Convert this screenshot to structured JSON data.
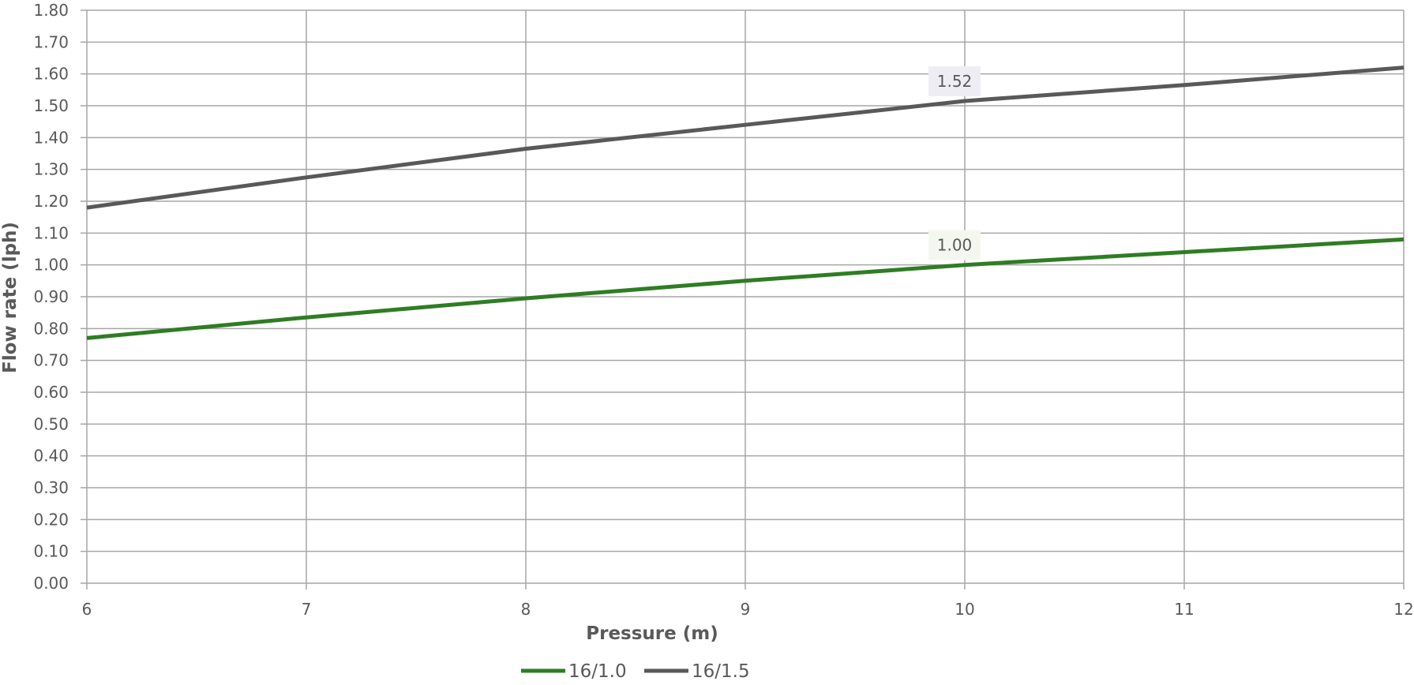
{
  "chart_data": {
    "type": "line",
    "title": "",
    "xlabel": "Pressure (m)",
    "ylabel": "Flow rate (lph)",
    "xlim": [
      6,
      12
    ],
    "ylim": [
      0,
      1.8
    ],
    "x_ticks": [
      "6",
      "7",
      "8",
      "9",
      "10",
      "11",
      "12"
    ],
    "y_ticks": [
      "0.00",
      "0.10",
      "0.20",
      "0.30",
      "0.40",
      "0.50",
      "0.60",
      "0.70",
      "0.80",
      "0.90",
      "1.00",
      "1.10",
      "1.20",
      "1.30",
      "1.40",
      "1.50",
      "1.60",
      "1.70",
      "1.80"
    ],
    "grid": true,
    "legend_position": "bottom",
    "series": [
      {
        "name": "16/1.0",
        "color": "#2e7d23",
        "x": [
          6,
          7,
          8,
          9,
          10,
          11,
          12
        ],
        "values": [
          0.77,
          0.835,
          0.895,
          0.95,
          1.0,
          1.04,
          1.08
        ],
        "data_labels": [
          {
            "x": 10,
            "text": "1.00",
            "bg": "#f4f7ef"
          }
        ]
      },
      {
        "name": "16/1.5",
        "color": "#595959",
        "x": [
          6,
          7,
          8,
          9,
          10,
          11,
          12
        ],
        "values": [
          1.18,
          1.275,
          1.365,
          1.44,
          1.515,
          1.565,
          1.62
        ],
        "data_labels": [
          {
            "x": 10,
            "text": "1.52",
            "bg": "#efedf4"
          }
        ]
      }
    ]
  }
}
